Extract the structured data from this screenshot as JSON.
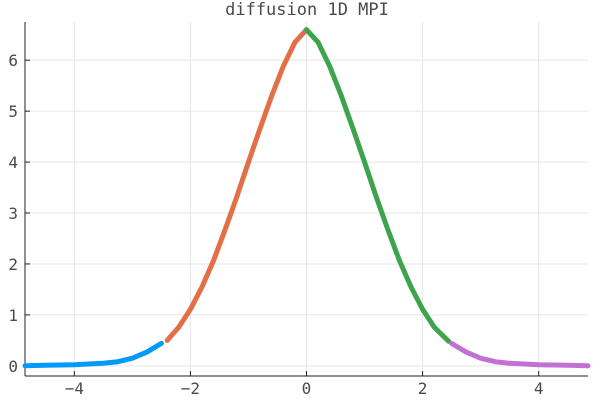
{
  "chart_data": {
    "type": "line",
    "title": "diffusion 1D MPI",
    "xlabel": "",
    "ylabel": "",
    "xlim": [
      -4.85,
      4.85
    ],
    "ylim": [
      -0.2,
      6.75
    ],
    "grid": true,
    "legend": "none",
    "x_ticks": [
      -4,
      -2,
      0,
      2,
      4
    ],
    "x_tick_labels": [
      "−4",
      "−2",
      "0",
      "2",
      "4"
    ],
    "y_ticks": [
      0,
      1,
      2,
      3,
      4,
      5,
      6
    ],
    "y_tick_labels": [
      "0",
      "1",
      "2",
      "3",
      "4",
      "5",
      "6"
    ],
    "series": [
      {
        "color": "#009af9",
        "x": [
          -4.85,
          -4.5,
          -4.0,
          -3.5,
          -3.25,
          -3.0,
          -2.75,
          -2.5
        ],
        "y": [
          0.0,
          0.01,
          0.02,
          0.05,
          0.08,
          0.15,
          0.27,
          0.44
        ]
      },
      {
        "color": "#e26f46",
        "x": [
          -2.4,
          -2.2,
          -2.0,
          -1.8,
          -1.6,
          -1.4,
          -1.2,
          -1.0,
          -0.8,
          -0.6,
          -0.4,
          -0.2,
          0.0
        ],
        "y": [
          0.5,
          0.76,
          1.11,
          1.55,
          2.07,
          2.68,
          3.32,
          4.0,
          4.66,
          5.3,
          5.88,
          6.35,
          6.6
        ]
      },
      {
        "color": "#3da44d",
        "x": [
          0.0,
          0.2,
          0.4,
          0.6,
          0.8,
          1.0,
          1.2,
          1.4,
          1.6,
          1.8,
          2.0,
          2.2,
          2.45
        ],
        "y": [
          6.6,
          6.35,
          5.88,
          5.3,
          4.66,
          4.0,
          3.32,
          2.68,
          2.07,
          1.55,
          1.11,
          0.76,
          0.48
        ]
      },
      {
        "color": "#c271d2",
        "x": [
          2.5,
          2.75,
          3.0,
          3.25,
          3.5,
          4.0,
          4.5,
          4.85
        ],
        "y": [
          0.44,
          0.27,
          0.15,
          0.08,
          0.05,
          0.02,
          0.01,
          0.0
        ]
      }
    ]
  }
}
